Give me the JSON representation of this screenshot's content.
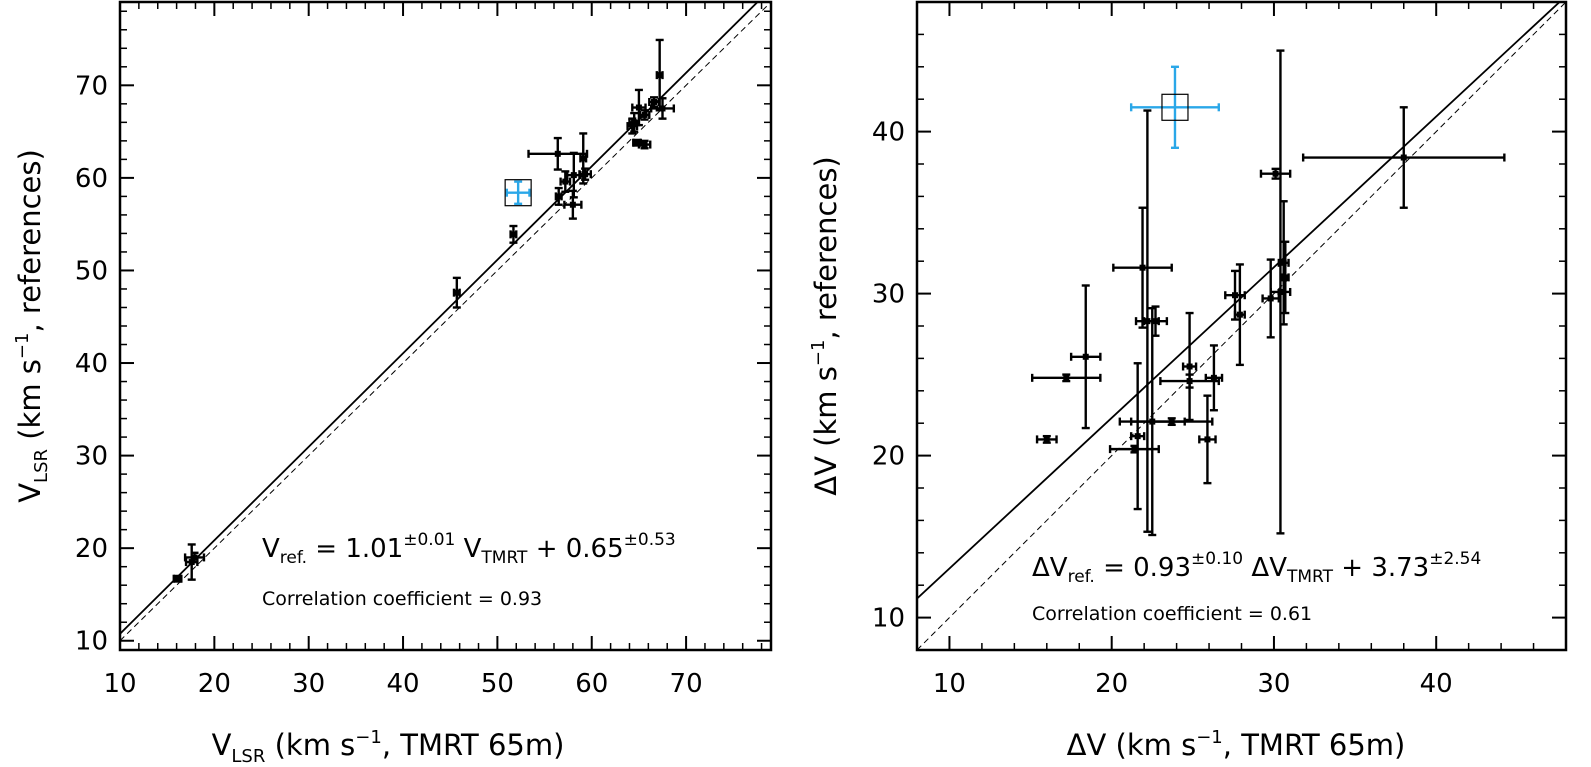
{
  "chart_data": [
    {
      "type": "scatter",
      "panel": "left",
      "xlim": [
        10,
        79
      ],
      "ylim": [
        9,
        79
      ],
      "xticks": [
        10,
        20,
        30,
        40,
        50,
        60,
        70
      ],
      "yticks": [
        10,
        20,
        30,
        40,
        50,
        60,
        70
      ],
      "xlabel": {
        "pre": "V",
        "sub": "LSR",
        "post": " (km s",
        "sup": "−1",
        "post2": ", TMRT 65m)"
      },
      "ylabel": {
        "pre": "V",
        "sub": "LSR",
        "post": " (km s",
        "sup": "−1",
        "post2": ", references)"
      },
      "equation": {
        "lhs": "V",
        "lhs_sub": "ref.",
        "eq": " = 1.01",
        "slope_err": "±0.01",
        "mid": " V",
        "mid_sub": "TMRT",
        "plus": " + 0.65",
        "int_err": "±0.53"
      },
      "correlation_label": "Correlation coefficient = 0.93",
      "fit": {
        "slope": 1.01,
        "intercept": 0.65
      },
      "one_to_one": true,
      "series": [
        {
          "name": "sources",
          "color": "#000000",
          "points": [
            {
              "x": 16.1,
              "y": 16.7,
              "xerr": 0.4,
              "yerr": 0.3
            },
            {
              "x": 17.6,
              "y": 18.5,
              "xerr": 0.6,
              "yerr": 1.9
            },
            {
              "x": 17.9,
              "y": 19.0,
              "xerr": 1.0,
              "yerr": 0.5
            },
            {
              "x": 45.7,
              "y": 47.6,
              "xerr": 0.3,
              "yerr": 1.6
            },
            {
              "x": 51.7,
              "y": 53.9,
              "xerr": 0.3,
              "yerr": 0.9
            },
            {
              "x": 56.4,
              "y": 62.6,
              "xerr": 3.1,
              "yerr": 1.7
            },
            {
              "x": 56.5,
              "y": 58.0,
              "xerr": 0.3,
              "yerr": 0.9
            },
            {
              "x": 57.2,
              "y": 59.6,
              "xerr": 0.5,
              "yerr": 1.1
            },
            {
              "x": 58.0,
              "y": 57.1,
              "xerr": 0.9,
              "yerr": 1.5
            },
            {
              "x": 58.1,
              "y": 60.3,
              "xerr": 0.7,
              "yerr": 2.4
            },
            {
              "x": 59.1,
              "y": 62.1,
              "xerr": 0.3,
              "yerr": 2.7
            },
            {
              "x": 59.3,
              "y": 60.4,
              "xerr": 0.6,
              "yerr": 0.6
            },
            {
              "x": 64.3,
              "y": 65.6,
              "xerr": 0.5,
              "yerr": 0.8
            },
            {
              "x": 64.5,
              "y": 66.0,
              "xerr": 0.5,
              "yerr": 1.0
            },
            {
              "x": 64.8,
              "y": 63.8,
              "xerr": 0.4,
              "yerr": 0.3
            },
            {
              "x": 65.0,
              "y": 67.6,
              "xerr": 0.7,
              "yerr": 1.9
            },
            {
              "x": 65.6,
              "y": 63.6,
              "xerr": 0.6,
              "yerr": 0.4
            },
            {
              "x": 65.6,
              "y": 66.8,
              "xerr": 0.5,
              "yerr": 0.5
            },
            {
              "x": 66.6,
              "y": 68.2,
              "xerr": 0.5,
              "yerr": 0.5
            },
            {
              "x": 67.2,
              "y": 71.1,
              "xerr": 0.3,
              "yerr": 3.8
            },
            {
              "x": 67.5,
              "y": 67.5,
              "xerr": 1.2,
              "yerr": 1.1
            }
          ]
        },
        {
          "name": "highlighted",
          "color": "#2aa7e8",
          "boxed": true,
          "points": [
            {
              "x": 52.2,
              "y": 58.4,
              "xerr": 1.2,
              "yerr": 1.2
            }
          ]
        }
      ]
    },
    {
      "type": "scatter",
      "panel": "right",
      "xlim": [
        8,
        48
      ],
      "ylim": [
        8,
        48
      ],
      "xticks": [
        10,
        20,
        30,
        40
      ],
      "yticks": [
        10,
        20,
        30,
        40
      ],
      "xlabel": {
        "pre": "ΔV (km s",
        "sup": "−1",
        "post": ", TMRT 65m)"
      },
      "ylabel": {
        "pre": "ΔV (km s",
        "sup": "−1",
        "post": ", references)"
      },
      "equation": {
        "lhs": "ΔV",
        "lhs_sub": "ref.",
        "eq": " = 0.93",
        "slope_err": "±0.10",
        "mid": " ΔV",
        "mid_sub": "TMRT",
        "plus": " + 3.73",
        "int_err": "±2.54"
      },
      "correlation_label": "Correlation coefficient = 0.61",
      "fit": {
        "slope": 0.93,
        "intercept": 3.73
      },
      "one_to_one": true,
      "series": [
        {
          "name": "sources",
          "color": "#000000",
          "points": [
            {
              "x": 16.0,
              "y": 21.0,
              "xerr": 0.6,
              "yerr": 0.2
            },
            {
              "x": 17.2,
              "y": 24.8,
              "xerr": 2.1,
              "yerr": 0.2
            },
            {
              "x": 18.4,
              "y": 26.1,
              "xerr": 0.9,
              "yerr": 4.4
            },
            {
              "x": 21.4,
              "y": 20.4,
              "xerr": 1.5,
              "yerr": 0.2
            },
            {
              "x": 21.6,
              "y": 21.2,
              "xerr": 0.4,
              "yerr": 4.5
            },
            {
              "x": 21.9,
              "y": 31.6,
              "xerr": 1.8,
              "yerr": 3.7
            },
            {
              "x": 22.2,
              "y": 28.3,
              "xerr": 0.7,
              "yerr": 13.0
            },
            {
              "x": 22.5,
              "y": 22.1,
              "xerr": 2.0,
              "yerr": 7.0
            },
            {
              "x": 22.7,
              "y": 28.3,
              "xerr": 0.7,
              "yerr": 0.9
            },
            {
              "x": 23.7,
              "y": 22.1,
              "xerr": 2.5,
              "yerr": 0.2
            },
            {
              "x": 24.8,
              "y": 24.6,
              "xerr": 1.8,
              "yerr": 0.4
            },
            {
              "x": 24.8,
              "y": 25.5,
              "xerr": 0.4,
              "yerr": 3.3
            },
            {
              "x": 25.9,
              "y": 21.0,
              "xerr": 0.5,
              "yerr": 2.7
            },
            {
              "x": 26.3,
              "y": 24.8,
              "xerr": 0.5,
              "yerr": 2.0
            },
            {
              "x": 27.6,
              "y": 29.9,
              "xerr": 0.6,
              "yerr": 1.5
            },
            {
              "x": 27.9,
              "y": 28.7,
              "xerr": 0.3,
              "yerr": 3.1
            },
            {
              "x": 29.8,
              "y": 29.7,
              "xerr": 0.5,
              "yerr": 2.4
            },
            {
              "x": 30.1,
              "y": 37.4,
              "xerr": 0.9,
              "yerr": 0.3
            },
            {
              "x": 30.4,
              "y": 30.1,
              "xerr": 0.6,
              "yerr": 14.9
            },
            {
              "x": 30.6,
              "y": 31.9,
              "xerr": 0.3,
              "yerr": 3.8
            },
            {
              "x": 30.7,
              "y": 31.0,
              "xerr": 0.2,
              "yerr": 2.2
            },
            {
              "x": 38.0,
              "y": 38.4,
              "xerr": 6.2,
              "yerr": 3.1
            }
          ]
        },
        {
          "name": "highlighted",
          "color": "#2aa7e8",
          "boxed": true,
          "points": [
            {
              "x": 23.9,
              "y": 41.5,
              "xerr": 2.7,
              "yerr": 2.5
            }
          ]
        }
      ]
    }
  ]
}
